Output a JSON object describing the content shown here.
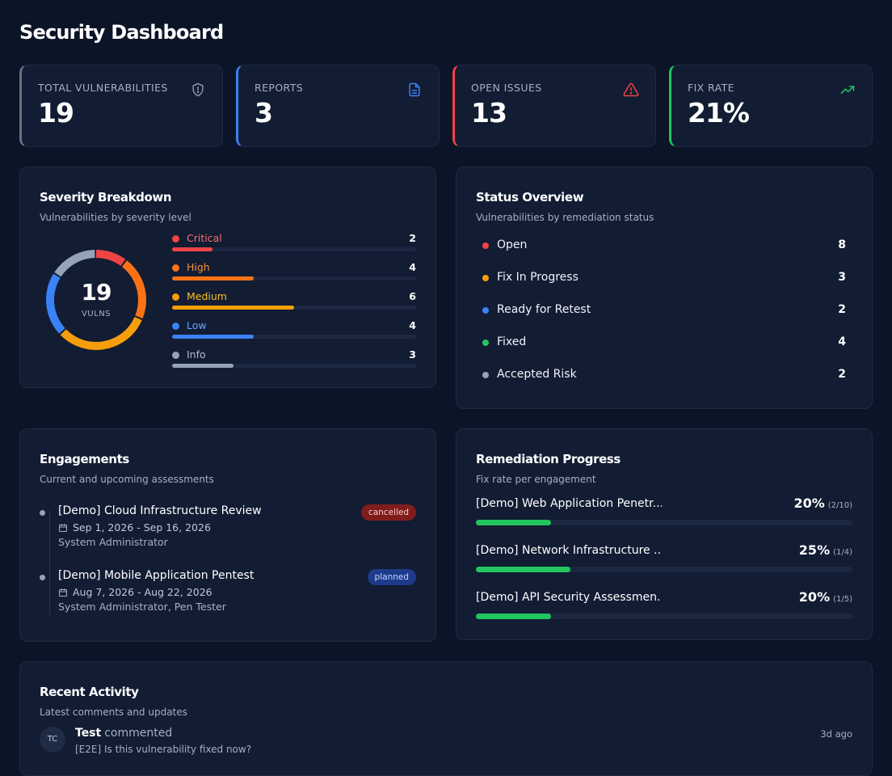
{
  "page": {
    "title": "Security Dashboard"
  },
  "stats": [
    {
      "label": "TOTAL VULNERABILITIES",
      "value": "19",
      "icon": "shield-icon",
      "accent": "#6b7280"
    },
    {
      "label": "REPORTS",
      "value": "3",
      "icon": "document-icon",
      "accent": "#3b82f6"
    },
    {
      "label": "OPEN ISSUES",
      "value": "13",
      "icon": "warning-icon",
      "accent": "#ef4444"
    },
    {
      "label": "FIX RATE",
      "value": "21%",
      "icon": "trending-up-icon",
      "accent": "#22c55e"
    }
  ],
  "severity": {
    "title": "Severity Breakdown",
    "subtitle": "Vulnerabilities by severity level",
    "total": "19",
    "total_label": "VULNS",
    "items": [
      {
        "name": "Critical",
        "count": 2,
        "color": "#ef4444"
      },
      {
        "name": "High",
        "count": 4,
        "color": "#f97316"
      },
      {
        "name": "Medium",
        "count": 6,
        "color": "#f59e0b"
      },
      {
        "name": "Low",
        "count": 4,
        "color": "#3b82f6"
      },
      {
        "name": "Info",
        "count": 3,
        "color": "#94a3b8"
      }
    ]
  },
  "status": {
    "title": "Status Overview",
    "subtitle": "Vulnerabilities by remediation status",
    "items": [
      {
        "name": "Open",
        "count": "8",
        "color": "#ef4444"
      },
      {
        "name": "Fix In Progress",
        "count": "3",
        "color": "#f59e0b"
      },
      {
        "name": "Ready for Retest",
        "count": "2",
        "color": "#3b82f6"
      },
      {
        "name": "Fixed",
        "count": "4",
        "color": "#22c55e"
      },
      {
        "name": "Accepted Risk",
        "count": "2",
        "color": "#94a3b8"
      }
    ]
  },
  "engagements": {
    "title": "Engagements",
    "subtitle": "Current and upcoming assessments",
    "items": [
      {
        "name": "[Demo] Cloud Infrastructure Review",
        "dates": "Sep 1, 2026 - Sep 16, 2026",
        "people": "System Administrator",
        "status": "cancelled"
      },
      {
        "name": "[Demo] Mobile Application Pentest",
        "dates": "Aug 7, 2026 - Aug 22, 2026",
        "people": "System Administrator, Pen Tester",
        "status": "planned"
      }
    ]
  },
  "remediation": {
    "title": "Remediation Progress",
    "subtitle": "Fix rate per engagement",
    "items": [
      {
        "name": "[Demo] Web Application Penetr...",
        "pct": "20%",
        "frac": "(2/10)",
        "progress": 0.2
      },
      {
        "name": "[Demo] Network Infrastructure ...",
        "pct": "25%",
        "frac": "(1/4)",
        "progress": 0.25
      },
      {
        "name": "[Demo] API Security Assessmen...",
        "pct": "20%",
        "frac": "(1/5)",
        "progress": 0.2
      }
    ]
  },
  "activity": {
    "title": "Recent Activity",
    "subtitle": "Latest comments and updates",
    "items": [
      {
        "initials": "TC",
        "user": "Test",
        "verb": "commented",
        "text": "[E2E] Is this vulnerability fixed now?",
        "time": "3d ago"
      }
    ]
  }
}
